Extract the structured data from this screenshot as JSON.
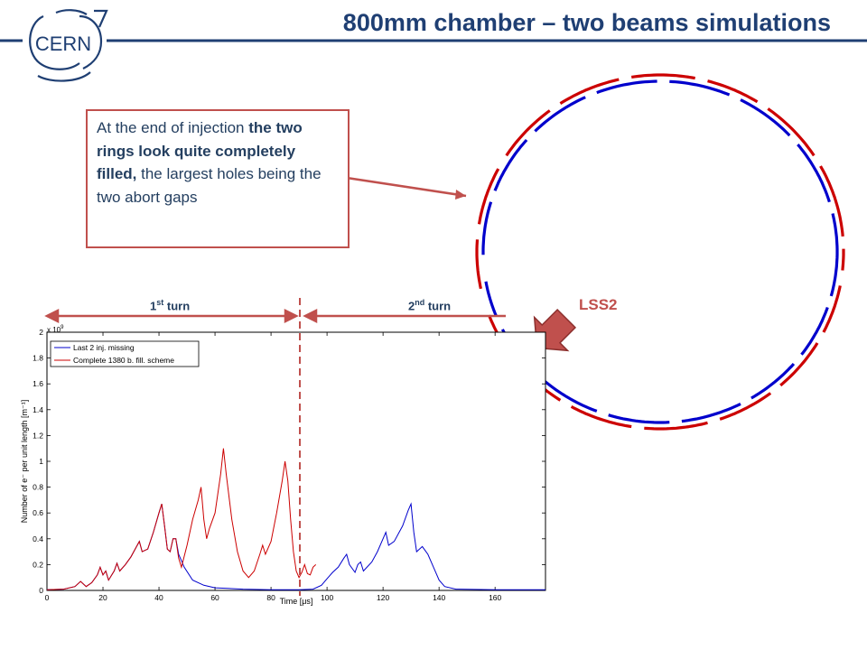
{
  "slide": {
    "title": "800mm chamber – two beams simulations",
    "logo_text": "CERN",
    "callout": {
      "part1": "At the end of injection ",
      "part2": "the two rings look quite completely filled,",
      "part3": " the largest holes being the two abort gaps"
    },
    "turn1": {
      "prefix": "1",
      "sup": "st",
      "suffix": " turn"
    },
    "turn2": {
      "prefix": "2",
      "sup": "nd",
      "suffix": " turn"
    },
    "lss2_label": "LSS2",
    "colors": {
      "title": "#1f3f73",
      "accent": "#c0504d",
      "blue": "#0000cc",
      "red": "#cc0000"
    }
  },
  "chart_data": {
    "type": "line",
    "xlabel": "Time [μs]",
    "ylabel": "Number of e⁻ per unit length [m⁻¹]",
    "y_exponent": "x 10",
    "y_exponent_power": "9",
    "xlim": [
      0,
      178
    ],
    "ylim": [
      0,
      2
    ],
    "xticks": [
      "0",
      "20",
      "40",
      "60",
      "80",
      "100",
      "120",
      "140",
      "160"
    ],
    "yticks": [
      "0",
      "0.2",
      "0.4",
      "0.6",
      "0.8",
      "1",
      "1.2",
      "1.4",
      "1.6",
      "1.8",
      "2"
    ],
    "legend_position": "top-left",
    "series": [
      {
        "name": "Last 2 inj. missing",
        "color": "#0000cc",
        "points": [
          [
            0,
            0.005
          ],
          [
            6,
            0.01
          ],
          [
            10,
            0.03
          ],
          [
            12,
            0.07
          ],
          [
            14,
            0.03
          ],
          [
            16,
            0.06
          ],
          [
            18,
            0.12
          ],
          [
            19,
            0.18
          ],
          [
            20,
            0.12
          ],
          [
            21,
            0.15
          ],
          [
            22,
            0.08
          ],
          [
            24,
            0.15
          ],
          [
            25,
            0.21
          ],
          [
            26,
            0.15
          ],
          [
            28,
            0.2
          ],
          [
            30,
            0.26
          ],
          [
            32,
            0.34
          ],
          [
            33,
            0.38
          ],
          [
            34,
            0.3
          ],
          [
            36,
            0.32
          ],
          [
            38,
            0.45
          ],
          [
            40,
            0.6
          ],
          [
            41,
            0.67
          ],
          [
            42,
            0.5
          ],
          [
            43,
            0.32
          ],
          [
            44,
            0.3
          ],
          [
            45,
            0.4
          ],
          [
            46,
            0.4
          ],
          [
            47,
            0.28
          ],
          [
            49,
            0.18
          ],
          [
            52,
            0.08
          ],
          [
            56,
            0.04
          ],
          [
            60,
            0.02
          ],
          [
            70,
            0.01
          ],
          [
            80,
            0.005
          ],
          [
            90,
            0.005
          ],
          [
            95,
            0.01
          ],
          [
            98,
            0.04
          ],
          [
            100,
            0.09
          ],
          [
            102,
            0.14
          ],
          [
            104,
            0.18
          ],
          [
            106,
            0.25
          ],
          [
            107,
            0.28
          ],
          [
            108,
            0.2
          ],
          [
            110,
            0.14
          ],
          [
            111,
            0.2
          ],
          [
            112,
            0.22
          ],
          [
            113,
            0.15
          ],
          [
            116,
            0.22
          ],
          [
            118,
            0.3
          ],
          [
            120,
            0.4
          ],
          [
            121,
            0.45
          ],
          [
            122,
            0.35
          ],
          [
            124,
            0.38
          ],
          [
            127,
            0.5
          ],
          [
            129,
            0.62
          ],
          [
            130,
            0.67
          ],
          [
            131,
            0.45
          ],
          [
            132,
            0.3
          ],
          [
            134,
            0.34
          ],
          [
            136,
            0.28
          ],
          [
            138,
            0.18
          ],
          [
            140,
            0.08
          ],
          [
            142,
            0.03
          ],
          [
            146,
            0.01
          ],
          [
            160,
            0.005
          ],
          [
            178,
            0.005
          ]
        ]
      },
      {
        "name": "Complete 1380 b. fill. scheme",
        "color": "#cc0000",
        "points": [
          [
            0,
            0.005
          ],
          [
            6,
            0.01
          ],
          [
            10,
            0.03
          ],
          [
            12,
            0.07
          ],
          [
            14,
            0.03
          ],
          [
            16,
            0.06
          ],
          [
            18,
            0.12
          ],
          [
            19,
            0.18
          ],
          [
            20,
            0.12
          ],
          [
            21,
            0.15
          ],
          [
            22,
            0.08
          ],
          [
            24,
            0.15
          ],
          [
            25,
            0.21
          ],
          [
            26,
            0.15
          ],
          [
            28,
            0.2
          ],
          [
            30,
            0.26
          ],
          [
            32,
            0.34
          ],
          [
            33,
            0.38
          ],
          [
            34,
            0.3
          ],
          [
            36,
            0.32
          ],
          [
            38,
            0.45
          ],
          [
            40,
            0.6
          ],
          [
            41,
            0.67
          ],
          [
            42,
            0.5
          ],
          [
            43,
            0.32
          ],
          [
            44,
            0.3
          ],
          [
            45,
            0.4
          ],
          [
            46,
            0.4
          ],
          [
            47,
            0.25
          ],
          [
            48,
            0.18
          ],
          [
            50,
            0.35
          ],
          [
            52,
            0.55
          ],
          [
            54,
            0.7
          ],
          [
            55,
            0.8
          ],
          [
            56,
            0.55
          ],
          [
            57,
            0.4
          ],
          [
            58,
            0.48
          ],
          [
            60,
            0.6
          ],
          [
            62,
            0.9
          ],
          [
            63,
            1.1
          ],
          [
            64,
            0.9
          ],
          [
            66,
            0.55
          ],
          [
            68,
            0.3
          ],
          [
            70,
            0.15
          ],
          [
            72,
            0.1
          ],
          [
            74,
            0.15
          ],
          [
            76,
            0.28
          ],
          [
            77,
            0.35
          ],
          [
            78,
            0.28
          ],
          [
            80,
            0.38
          ],
          [
            82,
            0.6
          ],
          [
            84,
            0.85
          ],
          [
            85,
            1.0
          ],
          [
            86,
            0.85
          ],
          [
            87,
            0.55
          ],
          [
            88,
            0.3
          ],
          [
            89,
            0.15
          ],
          [
            90,
            0.1
          ],
          [
            91,
            0.14
          ],
          [
            92,
            0.2
          ],
          [
            93,
            0.13
          ],
          [
            94,
            0.12
          ],
          [
            95,
            0.18
          ],
          [
            96,
            0.2
          ]
        ]
      }
    ]
  }
}
